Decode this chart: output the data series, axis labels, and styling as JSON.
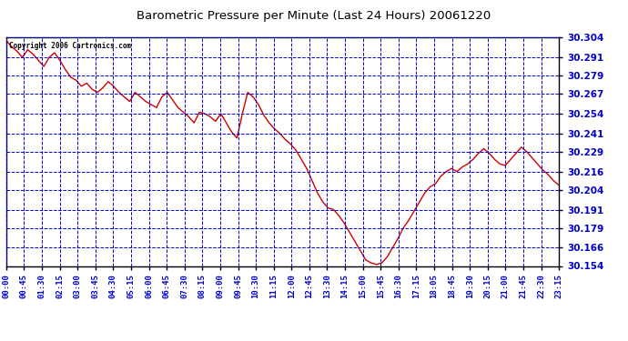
{
  "title": "Barometric Pressure per Minute (Last 24 Hours) 20061220",
  "copyright": "Copyright 2006 Cartronics.com",
  "background_color": "#ffffff",
  "plot_bg_color": "#ffffff",
  "line_color": "#cc0000",
  "grid_color": "#0000dd",
  "axis_label_color": "#0000cc",
  "border_color": "#000000",
  "title_color": "#000000",
  "y_min": 30.154,
  "y_max": 30.304,
  "y_ticks": [
    30.154,
    30.166,
    30.179,
    30.191,
    30.204,
    30.216,
    30.229,
    30.241,
    30.254,
    30.267,
    30.279,
    30.291,
    30.304
  ],
  "x_labels": [
    "00:00",
    "00:45",
    "01:30",
    "02:15",
    "03:00",
    "03:45",
    "04:30",
    "05:15",
    "06:00",
    "06:45",
    "07:30",
    "08:15",
    "09:00",
    "09:45",
    "10:30",
    "11:15",
    "12:00",
    "12:45",
    "13:30",
    "14:15",
    "15:00",
    "15:45",
    "16:30",
    "17:15",
    "18:05",
    "18:45",
    "19:30",
    "20:15",
    "21:00",
    "21:45",
    "22:30",
    "23:15"
  ],
  "pressure_values": [
    30.302,
    30.298,
    30.295,
    30.291,
    30.296,
    30.293,
    30.289,
    30.285,
    30.291,
    30.294,
    30.289,
    30.283,
    30.278,
    30.276,
    30.272,
    30.274,
    30.27,
    30.268,
    30.271,
    30.275,
    30.272,
    30.268,
    30.265,
    30.262,
    30.268,
    30.265,
    30.262,
    30.26,
    30.258,
    30.265,
    30.268,
    30.263,
    30.258,
    30.255,
    30.252,
    30.248,
    30.255,
    30.254,
    30.252,
    30.249,
    30.254,
    30.248,
    30.242,
    30.238,
    30.254,
    30.268,
    30.265,
    30.26,
    30.253,
    30.248,
    30.244,
    30.241,
    30.237,
    30.234,
    30.23,
    30.224,
    30.218,
    30.21,
    30.202,
    30.196,
    30.192,
    30.191,
    30.187,
    30.182,
    30.176,
    30.17,
    30.164,
    30.158,
    30.156,
    30.155,
    30.156,
    30.16,
    30.166,
    30.172,
    30.179,
    30.184,
    30.19,
    30.196,
    30.202,
    30.206,
    30.208,
    30.213,
    30.216,
    30.218,
    30.216,
    30.219,
    30.221,
    30.224,
    30.228,
    30.231,
    30.228,
    30.224,
    30.221,
    30.22,
    30.224,
    30.228,
    30.232,
    30.229,
    30.225,
    30.221,
    30.217,
    30.214,
    30.21,
    30.207
  ]
}
